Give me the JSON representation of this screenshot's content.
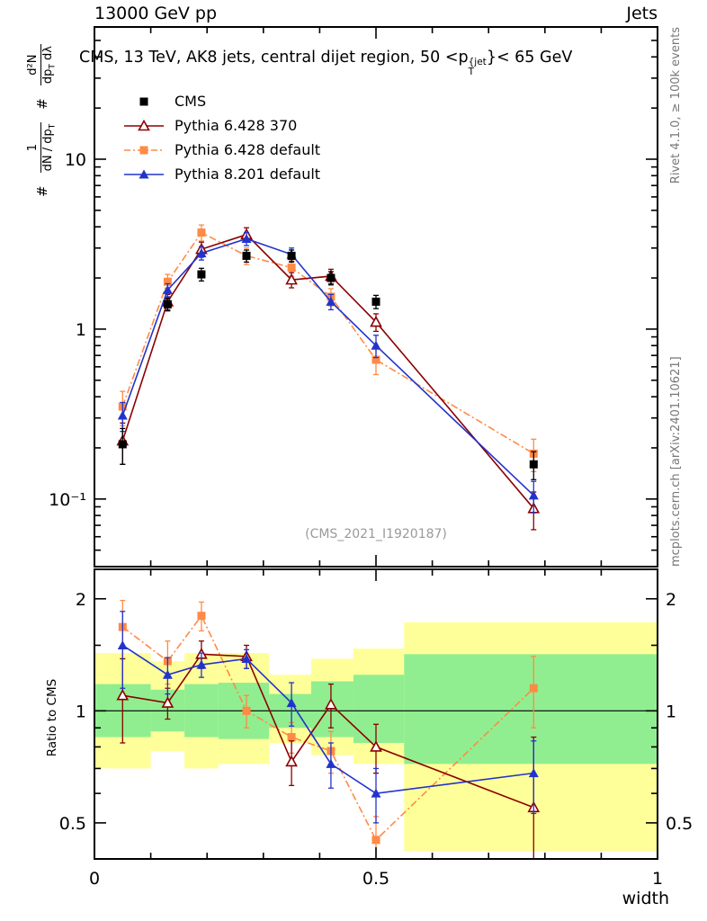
{
  "header": {
    "left": "13000 GeV pp",
    "right": "Jets"
  },
  "panel_title": {
    "pre": "CMS, 13 TeV, AK8 jets, central dijet region, 50 <p",
    "sup": "{jet",
    "sub": "T",
    "post": "}< 65 GeV"
  },
  "ylabel_parts": {
    "hash1": "#",
    "frac1_num": "1",
    "frac1_den_pre": "dN / dp",
    "frac1_den_sub": "T",
    "hash2": "#",
    "frac2_num": "d²N",
    "frac2_den_pre": "dp",
    "frac2_den_sub": "T",
    "frac2_den_post": " dλ"
  },
  "ratio_ylabel": "Ratio to CMS",
  "xaxis_title": "width",
  "watermark": "(CMS_2021_I1920187)",
  "side_notes": {
    "top": "Rivet 4.1.0, ≥ 100k events",
    "bottom": "mcplots.cern.ch [arXiv:2401.10621]"
  },
  "chart_data": {
    "type": "line",
    "title": "CMS, 13 TeV, AK8 jets, central dijet region, 50 < pT^jet < 65 GeV",
    "xlabel": "width",
    "ylabel": "1/(dN/dpT) d²N/(dpT dλ)",
    "x": [
      0.05,
      0.13,
      0.19,
      0.27,
      0.35,
      0.42,
      0.5,
      0.78
    ],
    "xlim": [
      0,
      1
    ],
    "xticks": [
      {
        "value": 0,
        "label": "0"
      },
      {
        "value": 0.5,
        "label": "0.5"
      },
      {
        "value": 1,
        "label": "1"
      }
    ],
    "main_panel": {
      "yscale": "log",
      "ylim": [
        0.04,
        60
      ],
      "yticks": [
        {
          "value": 10,
          "label": "10"
        },
        {
          "value": 1,
          "label": "1"
        },
        {
          "value": 0.1,
          "label": "10⁻¹"
        }
      ],
      "series": [
        {
          "name": "CMS",
          "color": "#000000",
          "marker": "square-filled",
          "line": "none",
          "y": [
            0.21,
            1.4,
            2.1,
            2.7,
            2.7,
            2.0,
            1.45,
            0.16
          ],
          "yerr": [
            0.05,
            0.12,
            0.18,
            0.22,
            0.22,
            0.18,
            0.13,
            0.03
          ]
        },
        {
          "name": "Pythia 6.428 370",
          "color": "#8b0000",
          "marker": "triangle-open",
          "line": "solid",
          "y": [
            0.22,
            1.45,
            2.95,
            3.6,
            1.95,
            2.05,
            1.1,
            0.088
          ],
          "yerr": [
            0.06,
            0.15,
            0.3,
            0.35,
            0.2,
            0.2,
            0.13,
            0.022
          ]
        },
        {
          "name": "Pythia 6.428 default",
          "color": "#ff8a45",
          "marker": "square-filled",
          "line": "dashdot",
          "y": [
            0.35,
            1.9,
            3.7,
            2.7,
            2.3,
            1.55,
            0.66,
            0.185
          ],
          "yerr": [
            0.08,
            0.2,
            0.4,
            0.3,
            0.25,
            0.18,
            0.12,
            0.04
          ]
        },
        {
          "name": "Pythia 8.201 default",
          "color": "#2233cc",
          "marker": "triangle-filled",
          "line": "solid",
          "y": [
            0.31,
            1.7,
            2.8,
            3.4,
            2.75,
            1.45,
            0.8,
            0.105
          ],
          "yerr": [
            0.06,
            0.15,
            0.25,
            0.3,
            0.25,
            0.15,
            0.12,
            0.022
          ]
        }
      ]
    },
    "ratio_panel": {
      "label": "Ratio to CMS",
      "yscale": "log",
      "ylim": [
        0.4,
        2.4
      ],
      "yticks": [
        {
          "value": 2,
          "label": "2"
        },
        {
          "value": 1,
          "label": "1"
        },
        {
          "value": 0.5,
          "label": "0.5"
        }
      ],
      "reference_line": 1,
      "band_edges": [
        0,
        0.1,
        0.16,
        0.22,
        0.31,
        0.385,
        0.46,
        0.55,
        1.0
      ],
      "bands": {
        "yellow": {
          "color": "#ffff99",
          "lo": [
            0.7,
            0.78,
            0.7,
            0.72,
            0.82,
            0.76,
            0.72,
            0.42
          ],
          "hi": [
            1.43,
            1.36,
            1.43,
            1.43,
            1.25,
            1.38,
            1.47,
            1.73
          ]
        },
        "green": {
          "color": "#90ee90",
          "lo": [
            0.85,
            0.88,
            0.85,
            0.84,
            0.9,
            0.85,
            0.82,
            0.72
          ],
          "hi": [
            1.18,
            1.14,
            1.18,
            1.19,
            1.11,
            1.2,
            1.25,
            1.42
          ]
        }
      },
      "series": [
        {
          "name": "Pythia 6.428 370",
          "color": "#8b0000",
          "marker": "triangle-open",
          "line": "solid",
          "y": [
            1.1,
            1.05,
            1.42,
            1.4,
            0.73,
            1.04,
            0.8,
            0.55
          ],
          "yerr": [
            0.28,
            0.1,
            0.12,
            0.1,
            0.1,
            0.14,
            0.12,
            0.3
          ]
        },
        {
          "name": "Pythia 6.428 default",
          "color": "#ff8a45",
          "marker": "square-filled",
          "line": "dashdot",
          "y": [
            1.68,
            1.36,
            1.8,
            1.0,
            0.85,
            0.78,
            0.45,
            1.15
          ],
          "yerr": [
            0.3,
            0.18,
            0.16,
            0.1,
            0.08,
            0.1,
            0.07,
            0.25
          ]
        },
        {
          "name": "Pythia 8.201 default",
          "color": "#2233cc",
          "marker": "triangle-filled",
          "line": "solid",
          "y": [
            1.5,
            1.25,
            1.33,
            1.38,
            1.05,
            0.72,
            0.6,
            0.68
          ],
          "yerr": [
            0.35,
            0.14,
            0.1,
            0.08,
            0.14,
            0.1,
            0.1,
            0.15
          ]
        }
      ]
    }
  }
}
